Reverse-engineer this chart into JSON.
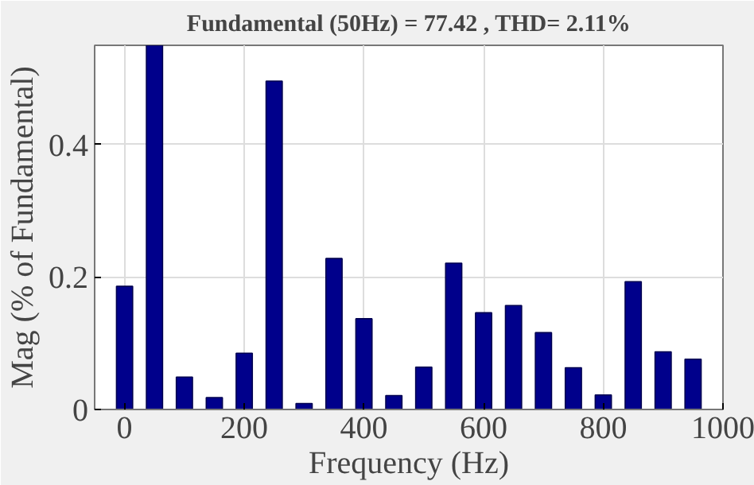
{
  "chart_data": {
    "type": "bar",
    "title": "Fundamental (50Hz) = 77.42 , THD= 2.11%",
    "xlabel": "Frequency (Hz)",
    "ylabel": "Mag (% of Fundamental)",
    "x": [
      0,
      50,
      100,
      150,
      200,
      250,
      300,
      350,
      400,
      450,
      500,
      550,
      600,
      650,
      700,
      750,
      800,
      850,
      900,
      950
    ],
    "values": [
      0.186,
      0.55,
      0.049,
      0.018,
      0.085,
      0.496,
      0.009,
      0.228,
      0.137,
      0.021,
      0.064,
      0.221,
      0.146,
      0.157,
      0.116,
      0.063,
      0.022,
      0.193,
      0.087,
      0.076
    ],
    "color": "#00008b",
    "xlim": [
      -50,
      1000
    ],
    "xticks": [
      0,
      200,
      400,
      600,
      800,
      1000
    ],
    "ylim": [
      0,
      0.55
    ],
    "yticks": [
      0,
      0.2,
      0.4
    ],
    "grid": true
  }
}
